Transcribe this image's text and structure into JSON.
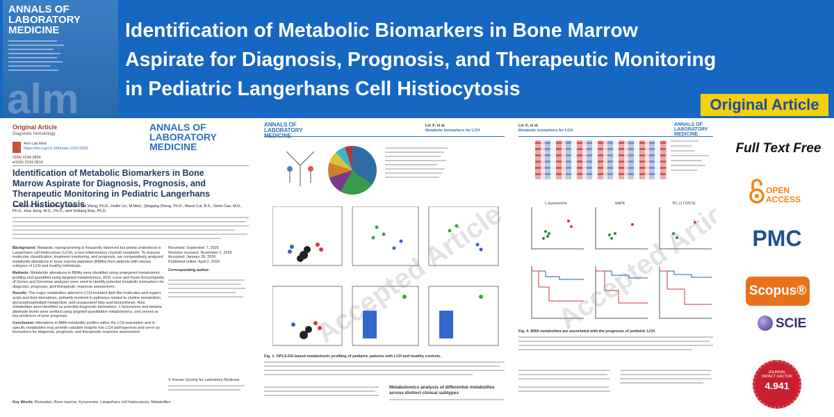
{
  "header": {
    "cover": {
      "journal": [
        "ANNALS OF",
        "LABORATORY",
        "MEDICINE"
      ],
      "abbr": "alm"
    },
    "title_lines": [
      "Identification of Metabolic Biomarkers in Bone Marrow",
      "Aspirate for Diagnosis, Prognosis, and Therapeutic Monitoring",
      "in Pediatric Langerhans Cell Histiocytosis"
    ],
    "badge": "Original Article"
  },
  "pages": [
    {
      "label": "Original Article",
      "section": "Diagnostic Hematology",
      "journal": [
        "ANNALS OF",
        "LABORATORY",
        "MEDICINE"
      ],
      "citation": "Ann Lab Med",
      "doi": "https://doi.org/10.3343/alm.2025.0536",
      "issn": "ISSN 2234-3806",
      "eissn": "eISSN 2234-3814",
      "title": "Identification of Metabolic Biomarkers in Bone Marrow Aspirate for Diagnosis, Prognosis, and Therapeutic Monitoring in Pediatric Langerhans Cell Histiocytosis",
      "authors": "Xiaodan Liu, M.S., Jiayi Wang, M.Med., Yali Wang, Ph.D., Huilin Lin, M.Med., Qingqing Zheng, Ph.D., Mansi Cai, B.S., Ximin Cao, M.D., Ph.D., Hua Jiang, M.D., Ph.D., and Xinliang Mao, Ph.D.",
      "abstract": [
        {
          "heading": "Background:",
          "text": "Metabolic reprogramming is frequently observed but poorly understood in Langerhans cell histiocytosis (LCH), a rare inflammatory myeloid neoplasm. To improve molecular classification, treatment monitoring, and prognosis, we comparatively analyzed metabolite alterations in bone marrow aspirates (BMAs) from patients with various subtypes of LCH and healthy individuals."
        },
        {
          "heading": "Methods:",
          "text": "Metabolite alterations in BMAs were identified using untargeted metabolomic profiling and quantified using targeted metabolomics. ROC curve and Kyoto Encyclopedia of Genes and Genomes analyses were used to identify potential metabolic biomarkers for diagnosis, prognosis, and therapeutic response assessment."
        },
        {
          "heading": "Results:",
          "text": "The major metabolites altered in LCH included lipid-like molecules and organic acids and their derivatives, primarily involved in pathways related to choline metabolism, glycerophospholipid metabolism, and unsaturated fatty acid biosynthesis. Nine metabolites were identified as potential diagnostic biomarkers. L-kynurenine and betaine aldehyde levels were verified using targeted quantitative metabolomics, and served as key predictors of poor prognosis."
        },
        {
          "heading": "Conclusion:",
          "text": "Alterations in BMA metabolite profiles within the LCH population and in specific metabolites may provide valuable insights into LCH pathogenesis and serve as biomarkers for diagnosis, prognosis, and therapeutic response assessment."
        }
      ],
      "dates": [
        "Received: September 7, 2025",
        "Revision received: November 2, 2025",
        "Accepted: January 28, 2026",
        "Published online: April 2, 2026"
      ],
      "corresponding": "Corresponding author:",
      "copyright": "© Korean Society for Laboratory Medicine",
      "keywords_heading": "Key Words:",
      "keywords": "Biomarker, Bone marrow, Kynurenine, Langerhans cell histiocytosis, Metabolites"
    },
    {
      "running_author": "Lin X, et al.",
      "running_title": "Metabolic biomarkers for LCH",
      "journal": [
        "ANNALS OF",
        "LABORATORY",
        "MEDICINE"
      ],
      "caption": "Fig. 1. OPLS-DA-based metabolomic profiling of pediatric patients with LCH and healthy controls.",
      "heading": "Metabolomics analysis of differential metabolites across distinct clinical subtypes",
      "watermark": "Accepted Article"
    },
    {
      "running_author": "Lin X, et al.",
      "running_title": "Metabolic biomarkers for LCH",
      "journal": [
        "ANNALS OF",
        "LABORATORY",
        "MEDICINE"
      ],
      "panels": [
        "L-kynurenine",
        "SAPE",
        "PC (17:0/0:0)"
      ],
      "caption": "Fig. 4. BMA metabolites are associated with the prognosis of pediatric LCH.",
      "watermark": "Accepted Article"
    }
  ],
  "sidebar": {
    "full_text": "Full Text Free",
    "open_access": "OPEN ACCESS",
    "pmc": "PMC",
    "scopus": "Scopus®",
    "scie": "SCIE",
    "impact_factor": {
      "top": "JOURNAL",
      "bottom": "IMPACT FACTOR",
      "value": "4.941"
    }
  }
}
